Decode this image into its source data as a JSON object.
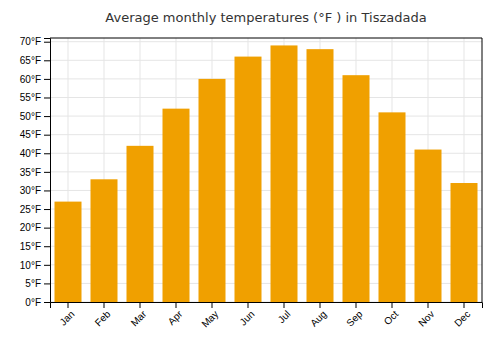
{
  "chart_data": {
    "type": "bar",
    "title": "Average monthly temperatures (°F ) in Tiszadada",
    "categories": [
      "Jan",
      "Feb",
      "Mar",
      "Apr",
      "May",
      "Jun",
      "Jul",
      "Aug",
      "Sep",
      "Oct",
      "Nov",
      "Dec"
    ],
    "values": [
      27,
      33,
      42,
      52,
      60,
      66,
      69,
      68,
      61,
      51,
      41,
      32
    ],
    "color": "#F0A000",
    "ylim": [
      0,
      71
    ],
    "yticks": [
      {
        "value": 0,
        "label": "0°F"
      },
      {
        "value": 5,
        "label": "5°F"
      },
      {
        "value": 10,
        "label": "10°F"
      },
      {
        "value": 15,
        "label": "15°F"
      },
      {
        "value": 20,
        "label": "20°F"
      },
      {
        "value": 25,
        "label": "25°F"
      },
      {
        "value": 30,
        "label": "30°F"
      },
      {
        "value": 35,
        "label": "35°F"
      },
      {
        "value": 40,
        "label": "40°F"
      },
      {
        "value": 45,
        "label": "45°F"
      },
      {
        "value": 50,
        "label": "50°F"
      },
      {
        "value": 55,
        "label": "55°F"
      },
      {
        "value": 60,
        "label": "60°F"
      },
      {
        "value": 65,
        "label": "65°F"
      },
      {
        "value": 70,
        "label": "70°F"
      }
    ],
    "grid": true
  }
}
